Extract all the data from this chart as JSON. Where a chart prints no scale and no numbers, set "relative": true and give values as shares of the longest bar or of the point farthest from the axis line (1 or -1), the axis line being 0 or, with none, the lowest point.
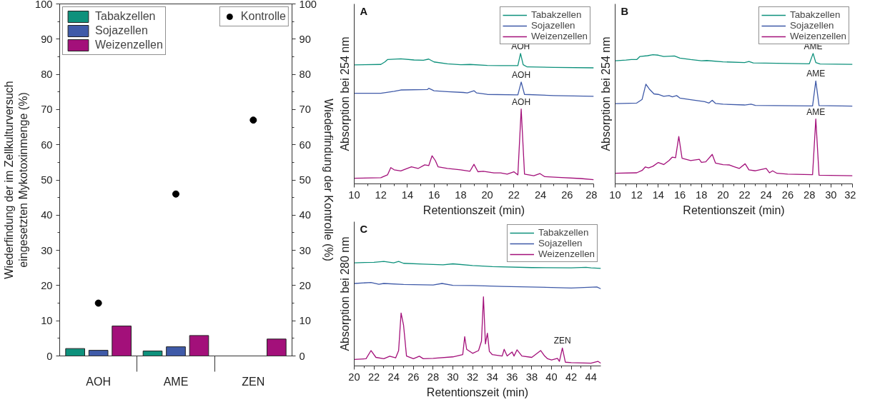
{
  "chart_data": [
    {
      "type": "bar",
      "categories": [
        "AOH",
        "AME",
        "ZEN"
      ],
      "ylabel": "Wiederfindung der im Zellkulturversuch\neingesetzten Mykotoxinmenge (%)",
      "y2label": "Wiederfindung der Kontrolle (%)",
      "ylim": [
        0,
        100
      ],
      "yticks": [
        0,
        10,
        20,
        30,
        40,
        50,
        60,
        70,
        80,
        90,
        100
      ],
      "y2lim": [
        0,
        100
      ],
      "y2ticks": [
        0,
        10,
        20,
        30,
        40,
        50,
        60,
        70,
        80,
        90,
        100
      ],
      "legend": "top",
      "grid": false,
      "series": [
        {
          "name": "Tabakzellen",
          "color": "#0e917c",
          "values": [
            2.1,
            1.4,
            null
          ]
        },
        {
          "name": "Sojazellen",
          "color": "#3f5aa8",
          "values": [
            1.6,
            2.6,
            null
          ]
        },
        {
          "name": "Weizenzellen",
          "color": "#a3107a",
          "values": [
            8.5,
            5.8,
            4.8
          ]
        },
        {
          "name": "Kontrolle",
          "type": "scatter",
          "axis": "y2",
          "marker": "circle",
          "color": "#000000",
          "x": [
            "AOH",
            "AME",
            "ZEN"
          ],
          "values": [
            15,
            46,
            67
          ]
        }
      ]
    },
    {
      "type": "line",
      "title": "A",
      "relative": true,
      "xlabel": "Retentionszeit (min)",
      "ylabel": "Absorption bei 254 nm",
      "xlim": [
        10,
        28
      ],
      "xticks": [
        10,
        12,
        14,
        16,
        18,
        20,
        22,
        24,
        26,
        28
      ],
      "legend": "top right",
      "grid": false,
      "annotations": [
        {
          "text": "AOH",
          "x": 22.5,
          "y": 1.0
        },
        {
          "text": "AOH",
          "x": 22.55,
          "y": 0.781
        },
        {
          "text": "AOH",
          "x": 22.55,
          "y": 0.574
        }
      ],
      "series": [
        {
          "name": "Tabakzellen",
          "color": "#0e917c",
          "x": [
            10,
            12,
            12.3,
            12.5,
            13.5,
            14.5,
            15.2,
            15.6,
            16,
            17,
            18,
            18.7,
            20,
            21,
            22.3,
            22.5,
            22.7,
            23,
            25,
            28
          ],
          "values": [
            0.912,
            0.916,
            0.935,
            0.953,
            0.959,
            0.95,
            0.948,
            0.957,
            0.935,
            0.921,
            0.914,
            0.916,
            0.908,
            0.907,
            0.907,
            1.0,
            0.914,
            0.897,
            0.893,
            0.89
          ]
        },
        {
          "name": "Sojazellen",
          "color": "#3f5aa8",
          "x": [
            10,
            12,
            13,
            13.5,
            15.5,
            15.6,
            16,
            17,
            18.2,
            18.5,
            19,
            19.2,
            20,
            22.3,
            22.55,
            22.8,
            25,
            28
          ],
          "values": [
            0.695,
            0.695,
            0.71,
            0.72,
            0.723,
            0.733,
            0.714,
            0.707,
            0.701,
            0.697,
            0.714,
            0.697,
            0.686,
            0.682,
            0.781,
            0.686,
            0.677,
            0.671
          ]
        },
        {
          "name": "Weizenzellen",
          "color": "#a3107a",
          "x": [
            10,
            12,
            12.5,
            12.75,
            13.0,
            13.5,
            14.3,
            14.8,
            15.3,
            15.6,
            15.85,
            16.1,
            16.3,
            17,
            18,
            18.7,
            19.0,
            19.3,
            19.7,
            20.5,
            21,
            21.5,
            22,
            22.3,
            22.55,
            22.8,
            23.5,
            23.95,
            24.3,
            25.3,
            27,
            28
          ],
          "values": [
            0.043,
            0.047,
            0.069,
            0.125,
            0.108,
            0.099,
            0.131,
            0.118,
            0.146,
            0.14,
            0.215,
            0.178,
            0.131,
            0.118,
            0.107,
            0.097,
            0.15,
            0.093,
            0.097,
            0.084,
            0.084,
            0.075,
            0.093,
            0.069,
            0.574,
            0.075,
            0.062,
            0.079,
            0.056,
            0.05,
            0.041,
            0.032
          ]
        }
      ]
    },
    {
      "type": "line",
      "title": "B",
      "relative": true,
      "xlabel": "Retentionszeit (min)",
      "ylabel": "Absorption bei 254 nm",
      "xlim": [
        10,
        32
      ],
      "xticks": [
        10,
        12,
        14,
        16,
        18,
        20,
        22,
        24,
        26,
        28,
        30,
        32
      ],
      "legend": "top right",
      "grid": false,
      "annotations": [
        {
          "text": "AME",
          "x": 28.35,
          "y": 1.0
        },
        {
          "text": "AME",
          "x": 28.6,
          "y": 0.789
        },
        {
          "text": "AME",
          "x": 28.6,
          "y": 0.498
        }
      ],
      "series": [
        {
          "name": "Tabakzellen",
          "color": "#0e917c",
          "x": [
            10,
            11,
            11.5,
            12,
            12.3,
            13,
            13.5,
            14,
            14.5,
            15.5,
            16,
            17,
            18,
            18.5,
            20,
            22,
            22.4,
            22.8,
            25,
            28,
            28.35,
            28.6,
            29,
            32
          ],
          "values": [
            0.944,
            0.949,
            0.953,
            0.953,
            0.977,
            0.983,
            0.991,
            0.987,
            0.977,
            0.981,
            0.964,
            0.953,
            0.944,
            0.946,
            0.936,
            0.93,
            0.938,
            0.927,
            0.925,
            0.921,
            1.0,
            0.93,
            0.919,
            0.917
          ]
        },
        {
          "name": "Sojazellen",
          "color": "#3f5aa8",
          "x": [
            10,
            12,
            12.5,
            12.85,
            13.2,
            13.6,
            14,
            14.5,
            15,
            15.3,
            15.7,
            16,
            17,
            18.3,
            18.7,
            19.0,
            19.3,
            20,
            22,
            22.6,
            23,
            28.3,
            28.6,
            28.9,
            32
          ],
          "values": [
            0.615,
            0.62,
            0.648,
            0.765,
            0.724,
            0.69,
            0.686,
            0.671,
            0.677,
            0.667,
            0.677,
            0.658,
            0.645,
            0.63,
            0.62,
            0.641,
            0.617,
            0.611,
            0.605,
            0.611,
            0.602,
            0.598,
            0.789,
            0.6,
            0.596
          ]
        },
        {
          "name": "Weizenzellen",
          "color": "#a3107a",
          "x": [
            10,
            12,
            12.5,
            12.8,
            13.1,
            13.5,
            14,
            14.5,
            15,
            15.3,
            15.6,
            15.9,
            16.2,
            17,
            17.8,
            18,
            18.4,
            19.0,
            19.3,
            20,
            20.6,
            21,
            21.5,
            22.05,
            22.4,
            23,
            24,
            24.3,
            24.6,
            25,
            26,
            28.3,
            28.6,
            28.9,
            32
          ],
          "values": [
            0.081,
            0.085,
            0.103,
            0.13,
            0.122,
            0.135,
            0.164,
            0.148,
            0.179,
            0.205,
            0.201,
            0.363,
            0.197,
            0.179,
            0.188,
            0.165,
            0.169,
            0.226,
            0.16,
            0.147,
            0.145,
            0.132,
            0.118,
            0.154,
            0.107,
            0.1,
            0.118,
            0.085,
            0.1,
            0.081,
            0.075,
            0.07,
            0.498,
            0.066,
            0.062
          ]
        }
      ]
    },
    {
      "type": "line",
      "title": "C",
      "relative": true,
      "xlabel": "Retentionszeit (min)",
      "ylabel": "Absorption bei 280 nm",
      "xlim": [
        20,
        45
      ],
      "xticks": [
        20,
        22,
        24,
        26,
        28,
        30,
        32,
        34,
        36,
        38,
        40,
        42,
        44
      ],
      "legend": "top right",
      "grid": false,
      "annotations": [
        {
          "text": "ZEN",
          "x": 41.1,
          "y": 0.172
        }
      ],
      "series": [
        {
          "name": "Tabakzellen",
          "color": "#0e917c",
          "x": [
            20,
            22,
            23,
            24,
            24.5,
            25,
            27,
            29,
            30,
            32,
            34,
            38,
            42,
            43.5,
            44,
            45
          ],
          "values": [
            0.987,
            0.992,
            1.0,
            0.987,
            1.0,
            0.982,
            0.974,
            0.967,
            0.977,
            0.961,
            0.951,
            0.941,
            0.938,
            0.943,
            0.938,
            0.933
          ]
        },
        {
          "name": "Sojazellen",
          "color": "#3f5aa8",
          "x": [
            20,
            21.7,
            22.5,
            23,
            25,
            28,
            28.9,
            30,
            32,
            35,
            40,
            42,
            44.6,
            45
          ],
          "values": [
            0.789,
            0.799,
            0.781,
            0.789,
            0.779,
            0.774,
            0.789,
            0.771,
            0.769,
            0.761,
            0.751,
            0.746,
            0.756,
            0.738
          ]
        },
        {
          "name": "Weizenzellen",
          "color": "#a3107a",
          "x": [
            20,
            21.2,
            21.7,
            22.2,
            23,
            23.6,
            24.2,
            24.5,
            24.75,
            25.0,
            25.3,
            26,
            26.6,
            27,
            28,
            30,
            31,
            31.2,
            31.4,
            32,
            32.6,
            32.9,
            33.1,
            33.3,
            33.5,
            33.7,
            34,
            35,
            35.2,
            35.5,
            36,
            36.2,
            36.5,
            37,
            38,
            38.9,
            39.3,
            39.6,
            40,
            40.6,
            40.8,
            41.1,
            41.4,
            42,
            44,
            44.7,
            45
          ],
          "values": [
            0.062,
            0.069,
            0.147,
            0.082,
            0.069,
            0.093,
            0.077,
            0.147,
            0.506,
            0.391,
            0.095,
            0.069,
            0.093,
            0.069,
            0.072,
            0.087,
            0.108,
            0.28,
            0.159,
            0.121,
            0.147,
            0.237,
            0.661,
            0.211,
            0.314,
            0.139,
            0.108,
            0.095,
            0.159,
            0.095,
            0.134,
            0.095,
            0.154,
            0.095,
            0.082,
            0.147,
            0.095,
            0.069,
            0.057,
            0.072,
            0.044,
            0.172,
            0.036,
            0.031,
            0.026,
            0.044,
            0.026
          ]
        }
      ]
    }
  ]
}
